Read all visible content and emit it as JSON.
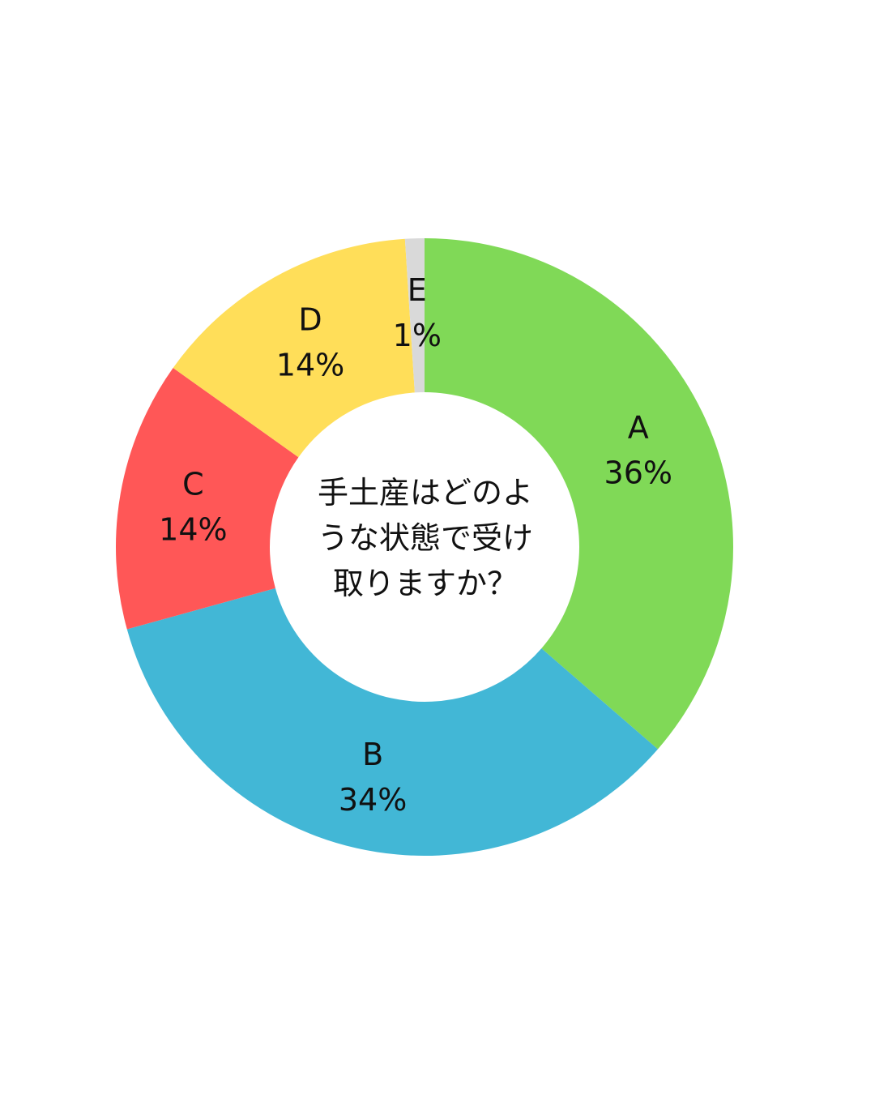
{
  "chart_data": {
    "type": "pie",
    "title": "",
    "center_text_lines": [
      "手土産はどのよ",
      "うな状態で受け",
      "取りますか？"
    ],
    "categories": [
      "A",
      "B",
      "C",
      "D",
      "E"
    ],
    "values": [
      36,
      34,
      14,
      14,
      1
    ],
    "value_labels": [
      "36%",
      "34%",
      "14%",
      "14%",
      "1%"
    ],
    "colors": [
      "#80d957",
      "#42b7d6",
      "#ff5757",
      "#ffde59",
      "#d9d9d9"
    ],
    "donut": true,
    "start": "top",
    "direction": "clockwise",
    "legend": "none"
  }
}
